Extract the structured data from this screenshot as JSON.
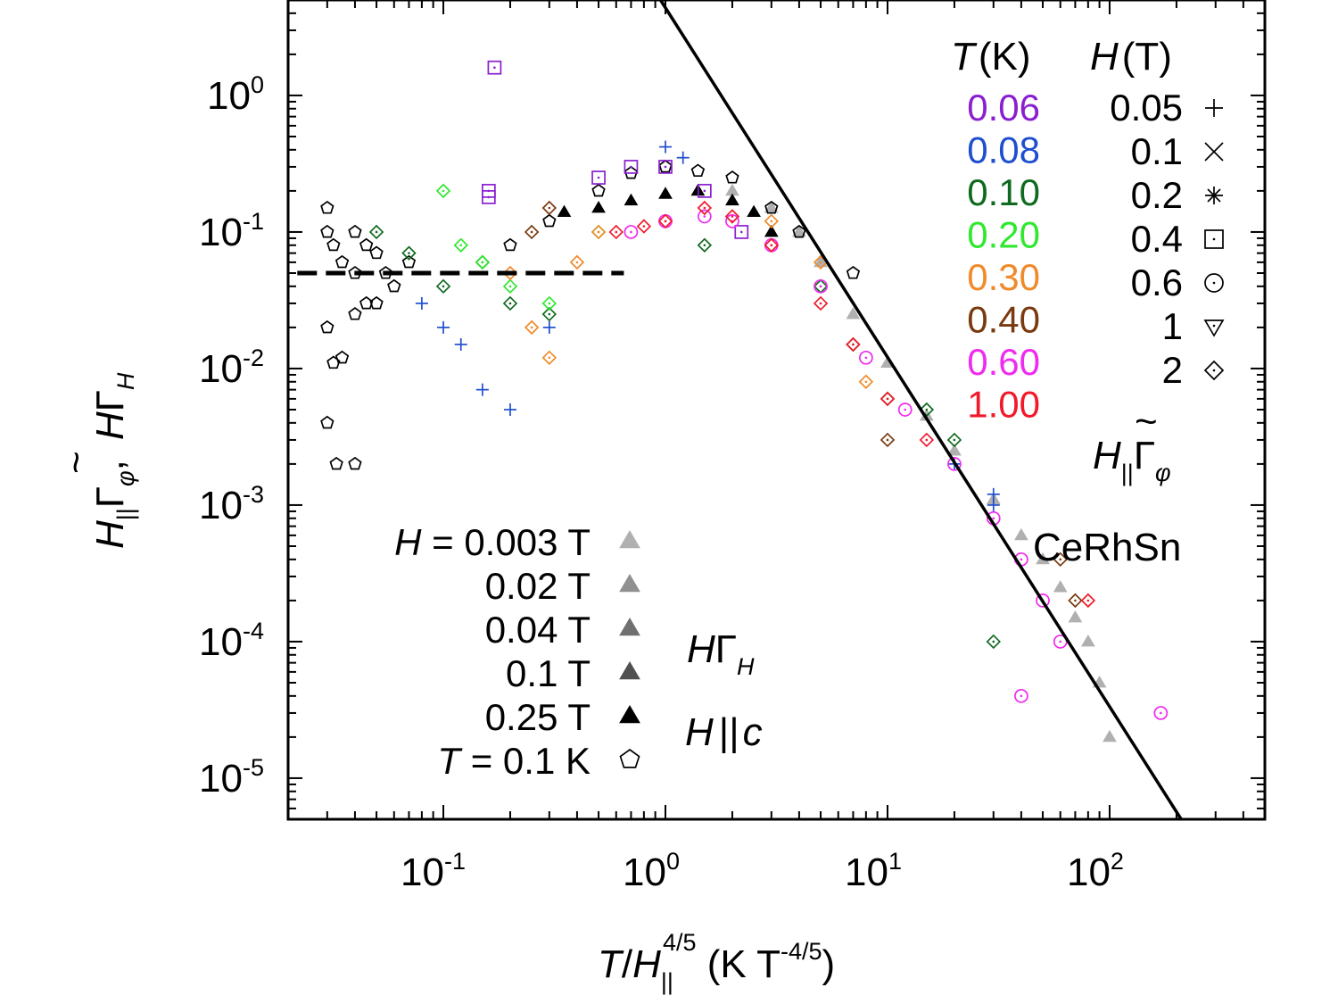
{
  "chart_data": {
    "type": "scatter",
    "x_scale": "log",
    "y_scale": "log",
    "xlim": [
      0.02,
      500
    ],
    "ylim": [
      5e-06,
      5
    ],
    "x_ticks": [
      "10-1",
      "100",
      "101",
      "102"
    ],
    "y_ticks": [
      "100",
      "10-1",
      "10-2",
      "10-3",
      "10-4",
      "10-5"
    ],
    "xlabel": {
      "t": "T",
      "slash": "/",
      "h": "H",
      "sub": "||",
      "exp": "4/5",
      "units": " (K T",
      "units_exp": "-4/5",
      "close": ")"
    },
    "ylabel": {
      "part1_h": "H",
      "part1_sub": "||",
      "part1_tilde": "~",
      "part1_gamma": "Γ",
      "part1_phi": "φ",
      "comma": ",",
      "part2_h": "H",
      "part2_gamma": "Γ",
      "part2_sub": "H"
    },
    "material": "CeRhSn",
    "annotation_hl_gamma": {
      "h": "H",
      "sub": "||",
      "tilde": "~",
      "gamma": "Γ",
      "phi": "φ"
    },
    "annotation_hgamma": {
      "h": "H",
      "gamma": "Γ",
      "sub": "H"
    },
    "annotation_hc": {
      "h": "H",
      "par": "||",
      "c": "c"
    },
    "legend_T": {
      "title_italic": "T",
      "title_unit": "(K)",
      "entries": [
        {
          "label": "0.06",
          "color": "#8a1fcf"
        },
        {
          "label": "0.08",
          "color": "#1f4fcf"
        },
        {
          "label": "0.10",
          "color": "#0f6a1f"
        },
        {
          "label": "0.20",
          "color": "#2fe82f"
        },
        {
          "label": "0.30",
          "color": "#f08a2a"
        },
        {
          "label": "0.40",
          "color": "#7a3a10"
        },
        {
          "label": "0.60",
          "color": "#f02af0"
        },
        {
          "label": "1.00",
          "color": "#f01a2a"
        }
      ]
    },
    "legend_H": {
      "title_italic": "H",
      "title_unit": "(T)",
      "entries": [
        {
          "label": "0.05",
          "marker": "plus"
        },
        {
          "label": "0.1",
          "marker": "cross"
        },
        {
          "label": "0.2",
          "marker": "star"
        },
        {
          "label": "0.4",
          "marker": "square-dot"
        },
        {
          "label": "0.6",
          "marker": "circle-dot"
        },
        {
          "label": "1",
          "marker": "triangle-down-dot"
        },
        {
          "label": "2",
          "marker": "diamond-dot"
        }
      ]
    },
    "legend_Hc": {
      "entries": [
        {
          "prefix": "H",
          "eq": " = ",
          "label": "0.003 T",
          "marker": "triangle-up",
          "color": "#b0b0b0"
        },
        {
          "prefix": "",
          "eq": "",
          "label": "0.02 T",
          "marker": "triangle-up",
          "color": "#909090"
        },
        {
          "prefix": "",
          "eq": "",
          "label": "0.04 T",
          "marker": "triangle-up",
          "color": "#707070"
        },
        {
          "prefix": "",
          "eq": "",
          "label": "0.1 T",
          "marker": "triangle-up",
          "color": "#505050"
        },
        {
          "prefix": "",
          "eq": "",
          "label": "0.25 T",
          "marker": "triangle-up",
          "color": "#000000"
        },
        {
          "prefix": "T",
          "eq": " = ",
          "label": "0.1 K",
          "marker": "pentagon",
          "color": "#000000"
        }
      ]
    },
    "fit_line": {
      "x": [
        0.95,
        210
      ],
      "y": [
        5,
        5e-06
      ],
      "style": "solid"
    },
    "dashed_line": {
      "x": [
        0.022,
        0.65
      ],
      "y": [
        0.05,
        0.05
      ],
      "style": "dashed"
    },
    "series": [
      {
        "name": "0.003 T",
        "marker": "triangle-up",
        "color": "#b0b0b0",
        "x": [
          2,
          3,
          4,
          5,
          7,
          10,
          15,
          20,
          30,
          40,
          50,
          60,
          70,
          80,
          90,
          100
        ],
        "y": [
          0.2,
          0.15,
          0.1,
          0.06,
          0.025,
          0.011,
          0.0045,
          0.0025,
          0.0011,
          0.0006,
          0.0004,
          0.00025,
          0.00015,
          0.0001,
          5e-05,
          2e-05
        ]
      },
      {
        "name": "0.25 T",
        "marker": "triangle-up",
        "color": "#000000",
        "x": [
          0.35,
          0.5,
          0.7,
          1,
          1.4,
          2,
          2.5,
          3
        ],
        "y": [
          0.14,
          0.15,
          0.17,
          0.19,
          0.2,
          0.17,
          0.14,
          0.1
        ]
      },
      {
        "name": "T = 0.1 K",
        "marker": "pentagon",
        "color": "#000000",
        "x": [
          0.03,
          0.03,
          0.032,
          0.035,
          0.04,
          0.04,
          0.045,
          0.05,
          0.055,
          0.06,
          0.07,
          0.03,
          0.032,
          0.035,
          0.04,
          0.045,
          0.05,
          0.03,
          0.033,
          0.04,
          0.2,
          0.3,
          0.5,
          0.7,
          1,
          1.4,
          2,
          3,
          4,
          7
        ],
        "y": [
          0.15,
          0.1,
          0.08,
          0.06,
          0.05,
          0.1,
          0.08,
          0.07,
          0.05,
          0.04,
          0.06,
          0.02,
          0.011,
          0.012,
          0.025,
          0.03,
          0.03,
          0.004,
          0.002,
          0.002,
          0.08,
          0.12,
          0.2,
          0.27,
          0.3,
          0.28,
          0.25,
          0.15,
          0.1,
          0.05
        ]
      },
      {
        "name": "0.06 K",
        "marker": "square-dot",
        "color": "#8a1fcf",
        "x": [
          0.17,
          0.16,
          0.16,
          0.5,
          0.7,
          1,
          1.5,
          2.2
        ],
        "y": [
          1.6,
          0.2,
          0.18,
          0.25,
          0.3,
          0.3,
          0.2,
          0.1
        ]
      },
      {
        "name": "0.08 K",
        "marker": "plus",
        "color": "#1f4fcf",
        "x": [
          0.08,
          0.1,
          0.12,
          0.15,
          0.2,
          0.3,
          1,
          1.2,
          20,
          30,
          30
        ],
        "y": [
          0.03,
          0.02,
          0.015,
          0.007,
          0.005,
          0.02,
          0.42,
          0.35,
          0.002,
          0.001,
          0.0012
        ]
      },
      {
        "name": "0.10 K",
        "marker": "diamond-dot",
        "color": "#0f6a1f",
        "x": [
          0.05,
          0.07,
          0.1,
          0.15,
          0.2,
          0.3,
          1.5,
          5,
          7,
          10,
          15,
          20,
          30
        ],
        "y": [
          0.1,
          0.07,
          0.04,
          0.06,
          0.03,
          0.025,
          0.08,
          0.04,
          0.015,
          0.006,
          0.005,
          0.003,
          0.0001
        ]
      },
      {
        "name": "0.20 K",
        "marker": "diamond-dot",
        "color": "#2fe82f",
        "x": [
          0.1,
          0.12,
          0.15,
          0.2,
          0.3,
          0.5
        ],
        "y": [
          0.2,
          0.08,
          0.06,
          0.04,
          0.03,
          0.1
        ]
      },
      {
        "name": "0.30 K",
        "marker": "diamond-dot",
        "color": "#f08a2a",
        "x": [
          0.2,
          0.25,
          0.3,
          0.4,
          0.5,
          3,
          5,
          8
        ],
        "y": [
          0.05,
          0.02,
          0.012,
          0.06,
          0.1,
          0.12,
          0.06,
          0.008
        ]
      },
      {
        "name": "0.40 K",
        "marker": "diamond-dot",
        "color": "#7a3a10",
        "x": [
          0.25,
          0.3,
          10,
          60,
          70
        ],
        "y": [
          0.1,
          0.15,
          0.003,
          0.0004,
          0.0002
        ]
      },
      {
        "name": "0.60 K",
        "marker": "circle-dot",
        "color": "#f02af0",
        "x": [
          0.7,
          1,
          1.5,
          2,
          3,
          5,
          8,
          12,
          20,
          30,
          40,
          50,
          60,
          40,
          170
        ],
        "y": [
          0.1,
          0.12,
          0.13,
          0.12,
          0.08,
          0.04,
          0.012,
          0.005,
          0.002,
          0.0008,
          0.0004,
          0.0002,
          0.0001,
          4e-05,
          3e-05
        ]
      },
      {
        "name": "1.00 K",
        "marker": "diamond-dot",
        "color": "#f01a2a",
        "x": [
          0.6,
          0.8,
          1,
          1.5,
          2,
          3,
          5,
          7,
          10,
          15,
          80
        ],
        "y": [
          0.1,
          0.11,
          0.12,
          0.15,
          0.13,
          0.08,
          0.03,
          0.015,
          0.006,
          0.003,
          0.0002
        ]
      }
    ]
  }
}
